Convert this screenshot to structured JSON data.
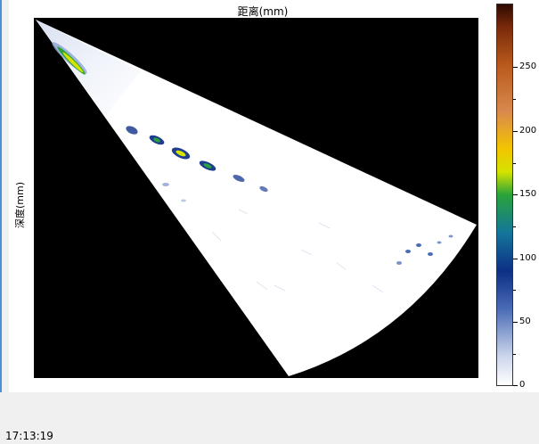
{
  "plot": {
    "top_axis_title": "距离(mm)",
    "left_axis_title": "深度(mm)"
  },
  "colorbar": {
    "labels": [
      "250",
      "200",
      "150",
      "100",
      "50",
      "0"
    ],
    "min": 0,
    "max": 295
  },
  "status": {
    "timestamp": "17:13:19"
  },
  "colors": {
    "background": "#000000",
    "fan_base": "#ffffff",
    "panel": "#ffffff",
    "window": "#f0f0f0"
  }
}
